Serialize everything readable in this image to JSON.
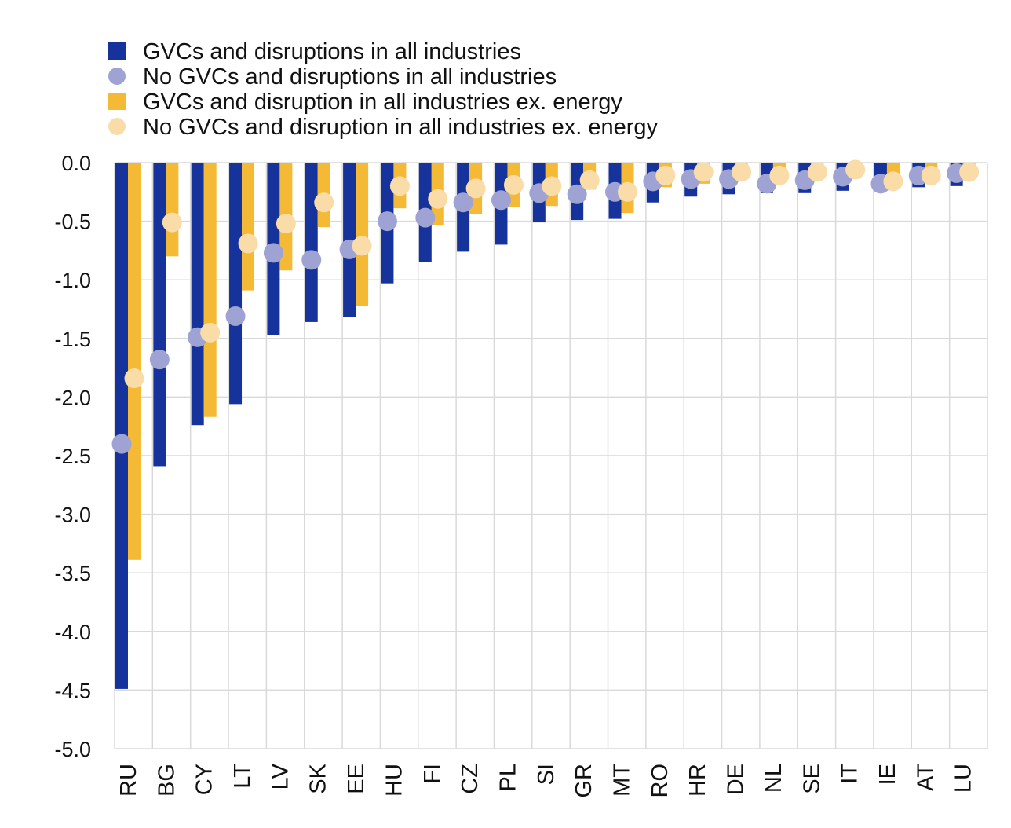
{
  "colors": {
    "gvc_all": "#16329b",
    "nogvc_all": "#9fa3d4",
    "gvc_exenergy": "#f4b935",
    "nogvc_exenergy": "#f9dca8",
    "grid": "#d9d9d9"
  },
  "legend": {
    "items": [
      {
        "label": "GVCs and disruptions in all industries",
        "shape": "square",
        "color": "#16329b"
      },
      {
        "label": "No GVCs and disruptions in all industries",
        "shape": "circle",
        "color": "#9fa3d4"
      },
      {
        "label": "GVCs and disruption in all industries ex. energy",
        "shape": "square",
        "color": "#f4b935"
      },
      {
        "label": "No GVCs and disruption in all industries ex. energy",
        "shape": "circle",
        "color": "#f9dca8"
      }
    ]
  },
  "chart_data": {
    "type": "bar",
    "categories": [
      "RU",
      "BG",
      "CY",
      "LT",
      "LV",
      "SK",
      "EE",
      "HU",
      "FI",
      "CZ",
      "PL",
      "SI",
      "GR",
      "MT",
      "RO",
      "HR",
      "DE",
      "NL",
      "SE",
      "IT",
      "IE",
      "AT",
      "LU"
    ],
    "series": [
      {
        "name": "GVCs and disruptions in all industries",
        "type": "bar",
        "values": [
          -4.49,
          -2.59,
          -2.24,
          -2.06,
          -1.47,
          -1.36,
          -1.32,
          -1.03,
          -0.85,
          -0.76,
          -0.7,
          -0.51,
          -0.49,
          -0.48,
          -0.34,
          -0.29,
          -0.27,
          -0.26,
          -0.26,
          -0.24,
          -0.22,
          -0.21,
          -0.2
        ]
      },
      {
        "name": "No GVCs and disruptions in all industries",
        "type": "dot",
        "values": [
          -2.4,
          -1.68,
          -1.49,
          -1.31,
          -0.77,
          -0.83,
          -0.74,
          -0.5,
          -0.47,
          -0.34,
          -0.32,
          -0.26,
          -0.27,
          -0.25,
          -0.16,
          -0.14,
          -0.14,
          -0.18,
          -0.15,
          -0.12,
          -0.18,
          -0.11,
          -0.09
        ]
      },
      {
        "name": "GVCs and disruption in all industries ex. energy",
        "type": "bar",
        "values": [
          -3.39,
          -0.8,
          -2.17,
          -1.09,
          -0.92,
          -0.55,
          -1.22,
          -0.39,
          -0.53,
          -0.44,
          -0.38,
          -0.37,
          -0.23,
          -0.43,
          -0.21,
          -0.18,
          -0.12,
          -0.17,
          -0.13,
          -0.05,
          -0.19,
          -0.16,
          -0.13
        ]
      },
      {
        "name": "No GVCs and disruption in all industries ex. energy",
        "type": "dot",
        "values": [
          -1.84,
          -0.51,
          -1.45,
          -0.69,
          -0.52,
          -0.34,
          -0.71,
          -0.2,
          -0.31,
          -0.22,
          -0.19,
          -0.2,
          -0.15,
          -0.25,
          -0.11,
          -0.08,
          -0.08,
          -0.11,
          -0.08,
          -0.06,
          -0.16,
          -0.11,
          -0.08
        ]
      }
    ],
    "ylim": [
      -5.0,
      0.0
    ],
    "yticks": [
      0.0,
      -0.5,
      -1.0,
      -1.5,
      -2.0,
      -2.5,
      -3.0,
      -3.5,
      -4.0,
      -4.5,
      -5.0
    ],
    "ytick_labels": [
      "0.0",
      "-0.5",
      "-1.0",
      "-1.5",
      "-2.0",
      "-2.5",
      "-3.0",
      "-3.5",
      "-4.0",
      "-4.5",
      "-5.0"
    ],
    "grid": true,
    "legend_position": "top-left"
  }
}
